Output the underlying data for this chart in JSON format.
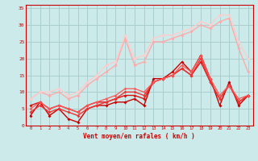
{
  "title": "",
  "xlabel": "Vent moyen/en rafales ( km/h )",
  "background_color": "#cceaea",
  "grid_color": "#aacece",
  "xlim": [
    -0.5,
    23.5
  ],
  "ylim": [
    0,
    36
  ],
  "yticks": [
    0,
    5,
    10,
    15,
    20,
    25,
    30,
    35
  ],
  "xticks": [
    0,
    1,
    2,
    3,
    4,
    5,
    6,
    7,
    8,
    9,
    10,
    11,
    12,
    13,
    14,
    15,
    16,
    17,
    18,
    19,
    20,
    21,
    22,
    23
  ],
  "series": [
    {
      "x": [
        0,
        1,
        2,
        3,
        4,
        5,
        6,
        7,
        8,
        9,
        10,
        11,
        12,
        13,
        14,
        15,
        16,
        17,
        18,
        19,
        20,
        21,
        22,
        23
      ],
      "y": [
        3,
        7,
        3,
        5,
        2,
        1,
        5,
        6,
        6,
        7,
        7,
        8,
        6,
        14,
        14,
        16,
        19,
        16,
        21,
        14,
        6,
        13,
        6,
        9
      ],
      "color": "#cc0000",
      "lw": 1.0,
      "marker": "D",
      "ms": 2.0
    },
    {
      "x": [
        0,
        1,
        2,
        3,
        4,
        5,
        6,
        7,
        8,
        9,
        10,
        11,
        12,
        13,
        14,
        15,
        16,
        17,
        18,
        19,
        20,
        21,
        22,
        23
      ],
      "y": [
        6,
        7,
        5,
        6,
        5,
        4,
        6,
        7,
        7,
        8,
        9,
        9,
        8,
        13,
        14,
        15,
        17,
        15,
        19,
        13,
        8,
        12,
        7,
        9
      ],
      "color": "#dd1111",
      "lw": 1.0,
      "marker": "D",
      "ms": 2.0
    },
    {
      "x": [
        0,
        1,
        2,
        3,
        4,
        5,
        6,
        7,
        8,
        9,
        10,
        11,
        12,
        13,
        14,
        15,
        16,
        17,
        18,
        19,
        20,
        21,
        22,
        23
      ],
      "y": [
        4,
        6,
        4,
        5,
        4,
        3,
        5,
        6,
        7,
        8,
        10,
        10,
        9,
        13,
        14,
        15,
        17,
        15,
        20,
        13,
        8,
        12,
        7,
        9
      ],
      "color": "#ee3333",
      "lw": 1.0,
      "marker": "D",
      "ms": 2.0
    },
    {
      "x": [
        0,
        1,
        2,
        3,
        4,
        5,
        6,
        7,
        8,
        9,
        10,
        11,
        12,
        13,
        14,
        15,
        16,
        17,
        18,
        19,
        20,
        21,
        22,
        23
      ],
      "y": [
        5,
        7,
        5,
        6,
        5,
        4,
        6,
        7,
        8,
        9,
        11,
        11,
        10,
        13,
        14,
        15,
        18,
        16,
        21,
        14,
        9,
        12,
        8,
        9
      ],
      "color": "#ff5555",
      "lw": 0.9,
      "marker": "D",
      "ms": 1.8
    },
    {
      "x": [
        0,
        1,
        2,
        3,
        4,
        5,
        6,
        7,
        8,
        9,
        10,
        11,
        12,
        13,
        14,
        15,
        16,
        17,
        18,
        19,
        20,
        21,
        22,
        23
      ],
      "y": [
        8,
        10,
        9,
        10,
        8,
        9,
        12,
        14,
        16,
        18,
        26,
        18,
        19,
        25,
        25,
        26,
        27,
        28,
        30,
        29,
        31,
        32,
        23,
        16
      ],
      "color": "#ffaaaa",
      "lw": 1.0,
      "marker": "D",
      "ms": 2.0
    },
    {
      "x": [
        0,
        1,
        2,
        3,
        4,
        5,
        6,
        7,
        8,
        9,
        10,
        11,
        12,
        13,
        14,
        15,
        16,
        17,
        18,
        19,
        20,
        21,
        22,
        23
      ],
      "y": [
        8,
        10,
        10,
        11,
        9,
        10,
        13,
        15,
        18,
        19,
        27,
        20,
        21,
        26,
        27,
        27,
        28,
        29,
        31,
        30,
        33,
        33,
        25,
        20
      ],
      "color": "#ffcccc",
      "lw": 1.0,
      "marker": "D",
      "ms": 2.0
    }
  ]
}
